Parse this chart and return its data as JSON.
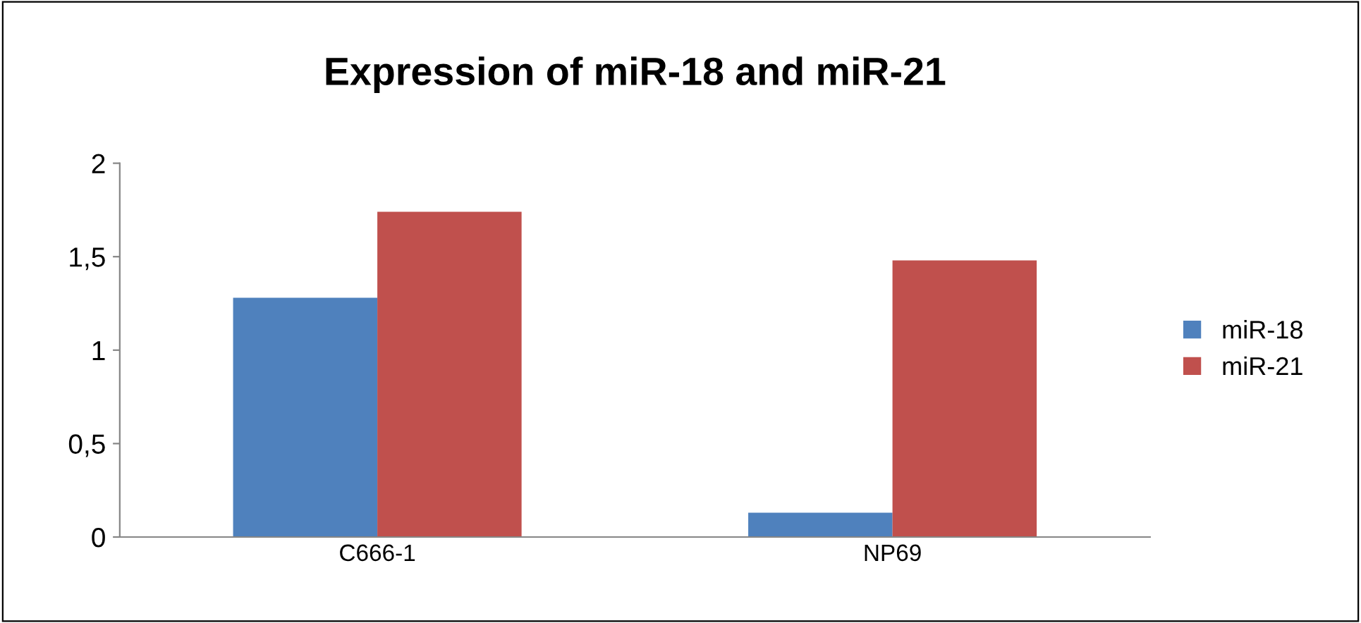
{
  "chart_data": {
    "type": "bar",
    "title": "Expression of miR-18 and miR-21",
    "categories": [
      "C666-1",
      "NP69"
    ],
    "series": [
      {
        "name": "miR-18",
        "color": "#4f81bd",
        "values": [
          1.28,
          0.13
        ]
      },
      {
        "name": "miR-21",
        "color": "#c0504d",
        "values": [
          1.74,
          1.48
        ]
      }
    ],
    "ylim": [
      0,
      2
    ],
    "yticks": [
      0,
      {
        "value": 0.5,
        "label": "0,5"
      },
      1,
      {
        "value": 1.5,
        "label": "1,5"
      },
      2
    ],
    "grid": false,
    "legend": "right"
  }
}
